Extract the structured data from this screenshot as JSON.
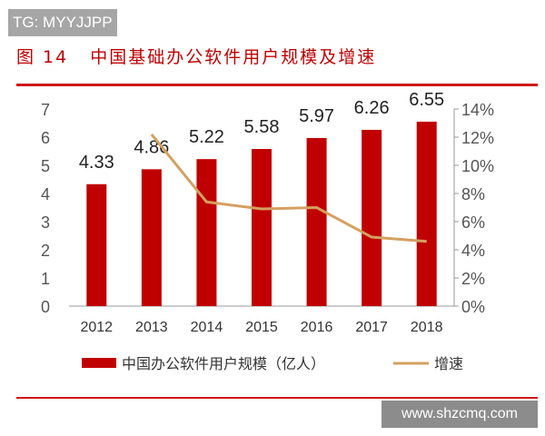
{
  "watermark_top": "TG: MYYJJPP",
  "watermark_bottom": "www.shzcmq.com",
  "figure_label": "图 14",
  "figure_title": "中国基础办公软件用户规模及增速",
  "chart_data": {
    "type": "bar+line",
    "categories": [
      "2012",
      "2013",
      "2014",
      "2015",
      "2016",
      "2017",
      "2018"
    ],
    "series": [
      {
        "name": "中国办公软件用户规模（亿人）",
        "type": "bar",
        "axis": "left",
        "color": "#c00000",
        "values": [
          4.33,
          4.86,
          5.22,
          5.58,
          5.97,
          6.26,
          6.55
        ],
        "data_labels": [
          "4.33",
          "4.86",
          "5.22",
          "5.58",
          "5.97",
          "6.26",
          "6.55"
        ]
      },
      {
        "name": "增速",
        "type": "line",
        "axis": "right",
        "color": "#d4a060",
        "x": [
          "2013",
          "2014",
          "2015",
          "2016",
          "2017",
          "2018"
        ],
        "values": [
          12.2,
          7.4,
          6.9,
          7.0,
          4.9,
          4.6
        ]
      }
    ],
    "left_axis": {
      "range": [
        0,
        7
      ],
      "ticks": [
        "0",
        "1",
        "2",
        "3",
        "4",
        "5",
        "6",
        "7"
      ]
    },
    "right_axis": {
      "range": [
        0,
        14
      ],
      "ticks": [
        "0%",
        "2%",
        "4%",
        "6%",
        "8%",
        "10%",
        "12%",
        "14%"
      ]
    },
    "grid": false,
    "legend": "bottom"
  }
}
